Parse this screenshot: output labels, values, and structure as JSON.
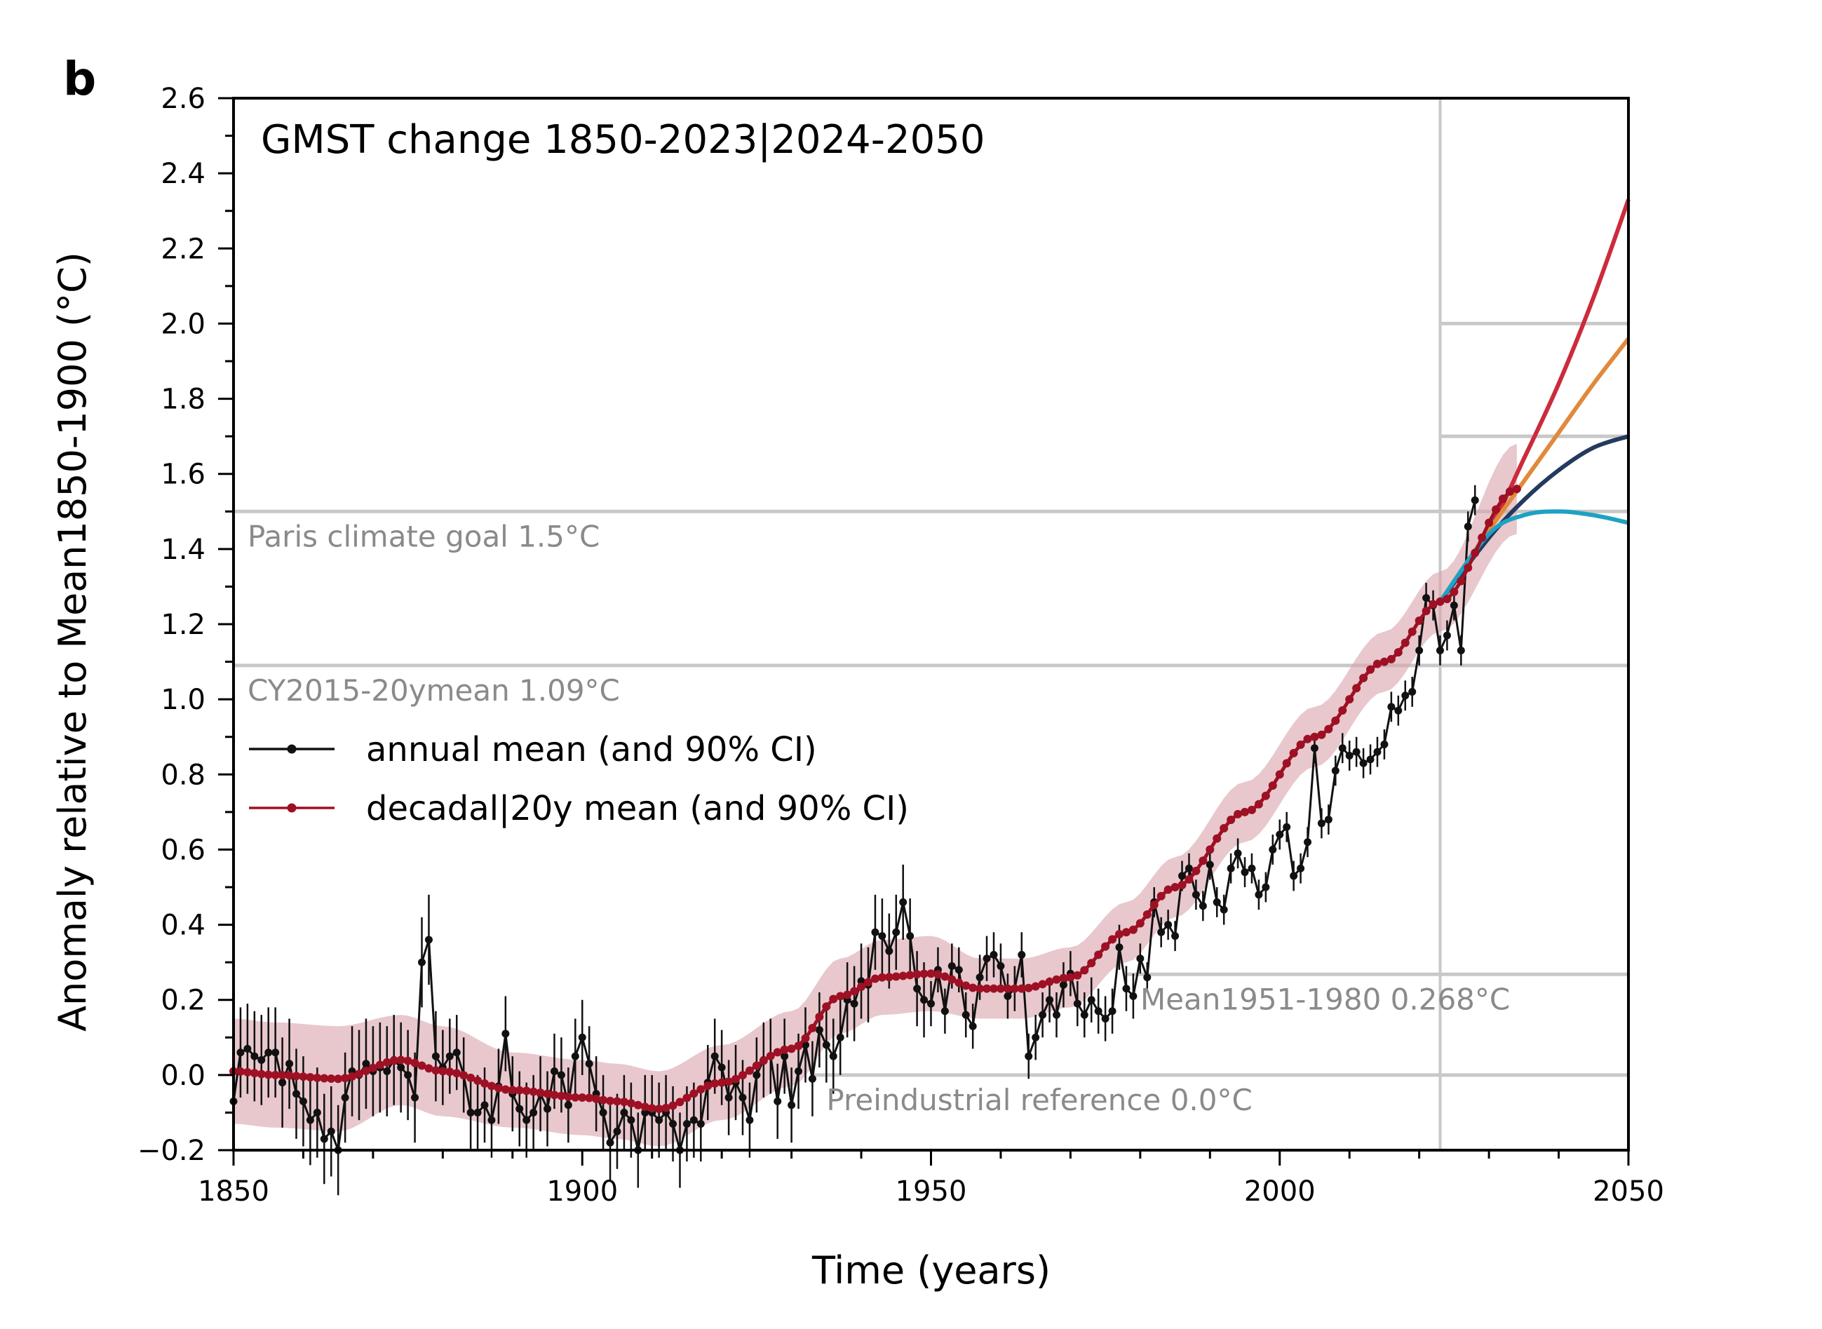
{
  "chart_data": {
    "type": "line",
    "panel_letter": "b",
    "title": "GMST change 1850-2023|2024-2050",
    "xlabel": "Time (years)",
    "ylabel": "Anomaly relative to Mean1850-1900 (°C)",
    "xlim": [
      1850,
      2050
    ],
    "ylim": [
      -0.2,
      2.6
    ],
    "xticks": [
      1850,
      1900,
      1950,
      2000,
      2050
    ],
    "yticks": [
      "−0.2",
      "0.0",
      "0.2",
      "0.4",
      "0.6",
      "0.8",
      "1.0",
      "1.2",
      "1.4",
      "1.6",
      "1.8",
      "2.0",
      "2.2",
      "2.4",
      "2.6"
    ],
    "grid": false,
    "legend_position": "middle-left",
    "colors": {
      "annual": "#111111",
      "decadal": "#9e1024",
      "decadal_ci": "#d9a3ac",
      "reference": "#c8c8c8",
      "reference_text": "#8a8a8a",
      "proj_high": "#cc2b3c",
      "proj_mid_high": "#e08a3c",
      "proj_mid_low": "#243a5e",
      "proj_low": "#1ea2c3"
    },
    "reference_lines": [
      {
        "label": "Paris climate goal 1.5°C",
        "y": 1.5,
        "x_start": 1850
      },
      {
        "label": "CY2015-20ymean 1.09°C",
        "y": 1.09,
        "x_start": 1850
      },
      {
        "label": "Mean1951-1980 0.268°C",
        "y": 0.268,
        "x_start": 1978
      },
      {
        "label": "Preindustrial reference 0.0°C",
        "y": 0.0,
        "x_start": 1933
      },
      {
        "label": "",
        "y": 2.0,
        "x_start": 2023
      },
      {
        "label": "",
        "y": 1.7,
        "x_start": 2023
      }
    ],
    "vertical_line_x": 2023,
    "legend": [
      {
        "label": "annual mean (and 90% CI)",
        "key": "annual"
      },
      {
        "label": "decadal|20y mean (and 90% CI)",
        "key": "decadal"
      }
    ],
    "annual_mean": {
      "x_start": 1850,
      "values": [
        -0.07,
        0.06,
        0.07,
        0.05,
        0.04,
        0.06,
        0.06,
        -0.02,
        0.03,
        -0.05,
        -0.07,
        -0.12,
        -0.1,
        -0.17,
        -0.15,
        -0.2,
        -0.06,
        0.01,
        0.0,
        0.03,
        0.01,
        0.02,
        0.01,
        0.04,
        0.02,
        0.0,
        -0.06,
        0.3,
        0.36,
        0.05,
        0.02,
        0.05,
        0.06,
        0.0,
        -0.1,
        -0.1,
        -0.08,
        -0.12,
        -0.03,
        0.11,
        -0.05,
        -0.09,
        -0.12,
        -0.1,
        -0.05,
        -0.09,
        0.01,
        0.0,
        -0.08,
        0.05,
        0.1,
        0.03,
        -0.05,
        -0.1,
        -0.18,
        -0.15,
        -0.1,
        -0.12,
        -0.2,
        -0.1,
        -0.1,
        -0.12,
        -0.1,
        -0.13,
        -0.2,
        -0.13,
        -0.12,
        -0.13,
        -0.02,
        0.05,
        0.02,
        -0.06,
        -0.02,
        -0.06,
        -0.12,
        0.0,
        0.04,
        0.05,
        -0.07,
        0.05,
        -0.08,
        0.01,
        0.08,
        -0.01,
        0.12,
        0.08,
        0.05,
        0.1,
        0.2,
        0.19,
        0.25,
        0.24,
        0.38,
        0.37,
        0.33,
        0.38,
        0.46,
        0.37,
        0.23,
        0.2,
        0.19,
        0.28,
        0.17,
        0.29,
        0.28,
        0.16,
        0.13,
        0.26,
        0.31,
        0.32,
        0.29,
        0.21,
        0.23,
        0.32,
        0.05,
        0.1,
        0.16,
        0.2,
        0.16,
        0.24,
        0.27,
        0.19,
        0.16,
        0.2,
        0.17,
        0.15,
        0.17,
        0.34,
        0.23,
        0.21,
        0.31,
        0.26,
        0.46,
        0.38,
        0.4,
        0.37,
        0.53,
        0.55,
        0.48,
        0.45,
        0.56,
        0.46,
        0.44,
        0.55,
        0.59,
        0.54,
        0.55,
        0.48,
        0.5,
        0.6,
        0.64,
        0.66,
        0.53,
        0.55,
        0.62,
        0.87,
        0.67,
        0.68,
        0.81,
        0.87,
        0.85,
        0.86,
        0.83,
        0.84,
        0.86,
        0.88,
        0.98,
        0.97,
        1.01,
        1.02,
        1.13,
        1.27,
        1.25,
        1.13,
        1.17,
        1.25,
        1.13,
        1.46,
        1.53
      ]
    },
    "decadal_mean": {
      "x_start": 1850,
      "x_end": 2034,
      "anchors": [
        {
          "x": 1850,
          "y": 0.01,
          "ci": 0.14
        },
        {
          "x": 1856,
          "y": 0.0,
          "ci": 0.14
        },
        {
          "x": 1865,
          "y": -0.01,
          "ci": 0.14
        },
        {
          "x": 1874,
          "y": 0.04,
          "ci": 0.12
        },
        {
          "x": 1880,
          "y": 0.01,
          "ci": 0.12
        },
        {
          "x": 1890,
          "y": -0.04,
          "ci": 0.1
        },
        {
          "x": 1900,
          "y": -0.06,
          "ci": 0.1
        },
        {
          "x": 1905,
          "y": -0.07,
          "ci": 0.1
        },
        {
          "x": 1911,
          "y": -0.09,
          "ci": 0.1
        },
        {
          "x": 1920,
          "y": -0.02,
          "ci": 0.1
        },
        {
          "x": 1930,
          "y": 0.07,
          "ci": 0.1
        },
        {
          "x": 1937,
          "y": 0.21,
          "ci": 0.1
        },
        {
          "x": 1943,
          "y": 0.26,
          "ci": 0.1
        },
        {
          "x": 1950,
          "y": 0.27,
          "ci": 0.1
        },
        {
          "x": 1957,
          "y": 0.23,
          "ci": 0.08
        },
        {
          "x": 1963,
          "y": 0.23,
          "ci": 0.08
        },
        {
          "x": 1970,
          "y": 0.26,
          "ci": 0.08
        },
        {
          "x": 1978,
          "y": 0.38,
          "ci": 0.08
        },
        {
          "x": 1985,
          "y": 0.5,
          "ci": 0.08
        },
        {
          "x": 1995,
          "y": 0.7,
          "ci": 0.08
        },
        {
          "x": 2005,
          "y": 0.9,
          "ci": 0.08
        },
        {
          "x": 2015,
          "y": 1.1,
          "ci": 0.08
        },
        {
          "x": 2023,
          "y": 1.26,
          "ci": 0.08
        },
        {
          "x": 2034,
          "y": 1.56,
          "ci": 0.12
        }
      ]
    },
    "projections": {
      "x_start": 2023,
      "x_end": 2050,
      "series": [
        {
          "key": "proj_high",
          "points": [
            [
              2023,
              1.26
            ],
            [
              2030,
              1.45
            ],
            [
              2035,
              1.64
            ],
            [
              2040,
              1.84
            ],
            [
              2045,
              2.07
            ],
            [
              2050,
              2.33
            ]
          ]
        },
        {
          "key": "proj_mid_high",
          "points": [
            [
              2023,
              1.26
            ],
            [
              2030,
              1.45
            ],
            [
              2035,
              1.58
            ],
            [
              2040,
              1.71
            ],
            [
              2045,
              1.84
            ],
            [
              2050,
              1.96
            ]
          ]
        },
        {
          "key": "proj_mid_low",
          "points": [
            [
              2023,
              1.26
            ],
            [
              2030,
              1.43
            ],
            [
              2035,
              1.53
            ],
            [
              2040,
              1.61
            ],
            [
              2045,
              1.67
            ],
            [
              2050,
              1.7
            ]
          ]
        },
        {
          "key": "proj_low",
          "points": [
            [
              2023,
              1.26
            ],
            [
              2030,
              1.44
            ],
            [
              2035,
              1.49
            ],
            [
              2040,
              1.5
            ],
            [
              2045,
              1.49
            ],
            [
              2050,
              1.47
            ]
          ]
        }
      ]
    }
  }
}
